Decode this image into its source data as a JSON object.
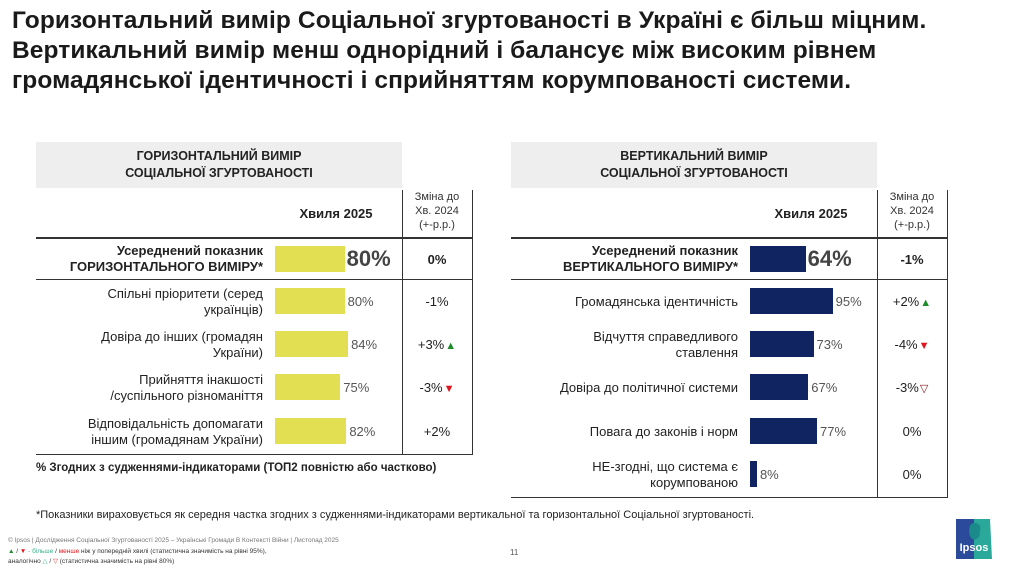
{
  "title": "Горизонтальний вимір Соціальної згуртованості в Україні є більш міцним. Вертикальний вимір менш однорідний і балансує між високим рівнем громадянської ідентичності і сприйняттям корумпованості системи.",
  "colors": {
    "horizontal_bar": "#e2df52",
    "vertical_bar": "#0f2461",
    "up_sig": "#1e8c2a",
    "down_sig": "#e0141c",
    "down_weak": "#8a1a1a"
  },
  "icons": {
    "up_sig": "▲",
    "down_sig": "▼",
    "down_weak": "▽",
    "up_weak": "△"
  },
  "column_headers": {
    "wave": "Хвиля 2025",
    "change_line1": "Зміна до",
    "change_line2": "Хв. 2024",
    "change_line3": "(+-р.р.)"
  },
  "chart_data": [
    {
      "type": "bar",
      "orientation": "horizontal",
      "title": "ГОРИЗОНТАЛЬНИЙ ВИМІР СОЦІАЛЬНОЇ ЗГУРТОВАНОСТІ",
      "average": {
        "label_line1": "Усереднений показник",
        "label_line2": "ГОРИЗОНТАЛЬНОГО ВИМІРУ*",
        "value": 80,
        "value_label": "80%",
        "change": "0%",
        "trend": ""
      },
      "categories": [
        "Спільні пріоритети (серед українців)",
        "Довіра до інших (громадян України)",
        "Прийняття інакшості /суспільного різноманіття",
        "Відповідальність допомагати іншим (громадянам України)"
      ],
      "labels_line1": [
        "Спільні пріоритети (серед",
        "Довіра до інших (громадян",
        "Прийняття інакшості",
        "Відповідальність допомагати"
      ],
      "labels_line2": [
        "українців)",
        "України)",
        "/суспільного різноманіття",
        "іншим (громадянам України)"
      ],
      "values": [
        80,
        84,
        75,
        82
      ],
      "value_labels": [
        "80%",
        "84%",
        "75%",
        "82%"
      ],
      "changes": [
        "-1%",
        "+3%",
        "-3%",
        "+2%"
      ],
      "trends": [
        "",
        "up_sig",
        "down_sig",
        ""
      ],
      "xlim": [
        0,
        100
      ],
      "note": "% Згодних з судженнями-індикаторами  (ТОП2 повністю або частково)"
    },
    {
      "type": "bar",
      "orientation": "horizontal",
      "title": "ВЕРТИКАЛЬНИЙ ВИМІР СОЦІАЛЬНОЇ ЗГУРТОВАНОСТІ",
      "average": {
        "label_line1": "Усереднений показник",
        "label_line2": "ВЕРТИКАЛЬНОГО ВИМІРУ*",
        "value": 64,
        "value_label": "64%",
        "change": "-1%",
        "trend": ""
      },
      "categories": [
        "Громадянська ідентичність",
        "Відчуття справедливого ставлення",
        "Довіра до політичної системи",
        "Повага до законів і норм",
        "НЕ-згодні, що система є корумпованою"
      ],
      "labels_line1": [
        "Громадянська ідентичність",
        "Відчуття справедливого",
        "Довіра до політичної системи",
        "Повага до законів і норм",
        "НЕ-згодні, що система є"
      ],
      "labels_line2": [
        "",
        "ставлення",
        "",
        "",
        "корумпованою"
      ],
      "values": [
        95,
        73,
        67,
        77,
        8
      ],
      "value_labels": [
        "95%",
        "73%",
        "67%",
        "77%",
        "8%"
      ],
      "changes": [
        "+2%",
        "-4%",
        "-3%",
        "0%",
        "0%"
      ],
      "trends": [
        "up_sig",
        "down_sig",
        "down_weak",
        "",
        ""
      ],
      "xlim": [
        0,
        100
      ]
    }
  ],
  "footnote": "*Показники вираховується як середня частка згодних з судженнями-індикаторами вертикальної та горизонтальної Соціальної згуртованості.",
  "footer": {
    "copyright": "© Ipsos | Дослідження Соціальної Згуртованості 2025 – Українські Громади В Контексті Війни | Листопад 2025",
    "legend_line1_prefix": "▲ / ▼",
    "legend_more": "- більше",
    "legend_slash": " / ",
    "legend_less": "менше",
    "legend_line1_rest": " ніж у попередній хвилі (статистична значимість на рівні 95%),",
    "legend_line2_prefix": "аналогічно",
    "legend_line2_icons": "△ / ▽",
    "legend_line2_rest": " (статистична значимість на рівні 80%)",
    "page_number": "11",
    "logo_text": "Ipsos"
  }
}
